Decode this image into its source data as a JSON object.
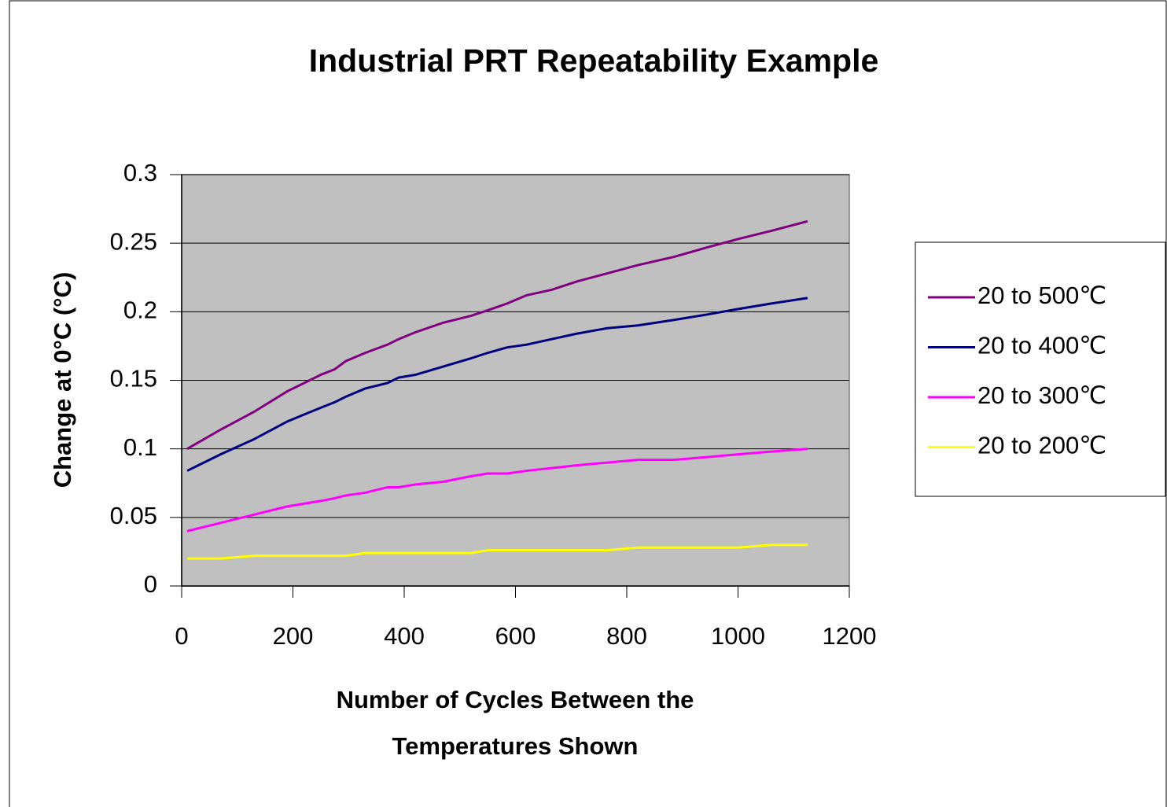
{
  "chart_data": {
    "type": "line",
    "title": "Industrial PRT Repeatability Example",
    "ylabel": "Change at 0°C (°C)",
    "xlabel": [
      "Number of Cycles Between the",
      "Temperatures Shown"
    ],
    "x": [
      10,
      70,
      130,
      190,
      250,
      275,
      295,
      330,
      370,
      390,
      420,
      470,
      520,
      550,
      585,
      620,
      665,
      710,
      765,
      820,
      885,
      945,
      1000,
      1060,
      1125
    ],
    "series": [
      {
        "name": "20 to 500℃",
        "color": "#800080",
        "values": [
          0.1,
          0.114,
          0.127,
          0.142,
          0.154,
          0.158,
          0.164,
          0.17,
          0.176,
          0.18,
          0.185,
          0.192,
          0.197,
          0.201,
          0.206,
          0.212,
          0.216,
          0.222,
          0.228,
          0.234,
          0.24,
          0.247,
          0.253,
          0.259,
          0.266
        ]
      },
      {
        "name": "20 to 400℃",
        "color": "#000080",
        "values": [
          0.084,
          0.096,
          0.107,
          0.12,
          0.13,
          0.134,
          0.138,
          0.144,
          0.148,
          0.152,
          0.154,
          0.16,
          0.166,
          0.17,
          0.174,
          0.176,
          0.18,
          0.184,
          0.188,
          0.19,
          0.194,
          0.198,
          0.202,
          0.206,
          0.21
        ]
      },
      {
        "name": "20 to 300℃",
        "color": "#ff00ff",
        "values": [
          0.04,
          0.046,
          0.052,
          0.058,
          0.062,
          0.064,
          0.066,
          0.068,
          0.072,
          0.072,
          0.074,
          0.076,
          0.08,
          0.082,
          0.082,
          0.084,
          0.086,
          0.088,
          0.09,
          0.092,
          0.092,
          0.094,
          0.096,
          0.098,
          0.1
        ]
      },
      {
        "name": "20 to 200℃",
        "color": "#ffff00",
        "values": [
          0.02,
          0.02,
          0.022,
          0.022,
          0.022,
          0.022,
          0.022,
          0.024,
          0.024,
          0.024,
          0.024,
          0.024,
          0.024,
          0.026,
          0.026,
          0.026,
          0.026,
          0.026,
          0.026,
          0.028,
          0.028,
          0.028,
          0.028,
          0.03,
          0.03
        ]
      }
    ],
    "xlim": [
      0,
      1200
    ],
    "xticks": [
      0,
      200,
      400,
      600,
      800,
      1000,
      1200
    ],
    "ylim": [
      0,
      0.3
    ],
    "yticks": [
      0,
      0.05,
      0.1,
      0.15,
      0.2,
      0.25,
      0.3
    ],
    "grid": true,
    "legend": "right",
    "plot_background": "#c0c0c0"
  }
}
